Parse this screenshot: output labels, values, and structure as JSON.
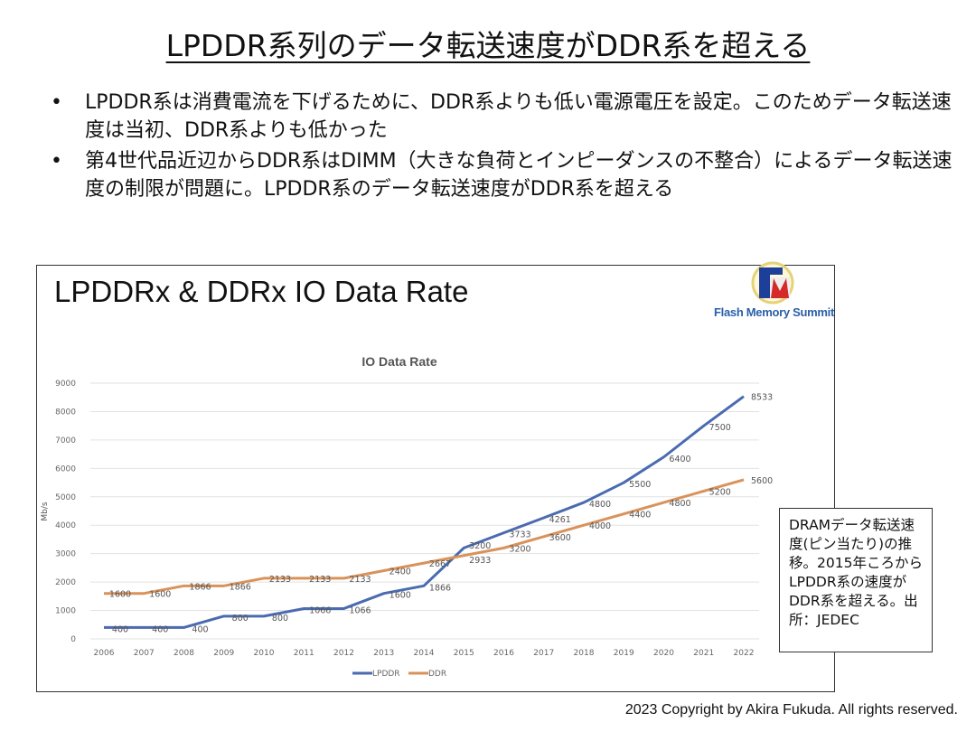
{
  "slide": {
    "title": "LPDDR系列のデータ転送速度がDDR系を超える",
    "bullets": [
      "LPDDR系は消費電流を下げるために、DDR系よりも低い電源電圧を設定。このためデータ転送速度は当初、DDR系よりも低かった",
      "第4世代品近辺からDDR系はDIMM（大きな負荷とインピーダンスの不整合）によるデータ転送速度の制限が問題に。LPDDR系のデータ転送速度がDDR系を超える"
    ],
    "chart_heading": "LPDDRx & DDRx IO Data Rate",
    "logo": {
      "letters": "FM",
      "caption": "Flash Memory Summit"
    },
    "note": "DRAMデータ転送速度(ピン当たり)の推移。2015年ころからLPDDR系の速度がDDR系を超える。出所：JEDEC",
    "copyright": "2023 Copyright by Akira Fukuda. All rights reserved."
  },
  "chart_data": {
    "type": "line",
    "title": "IO Data Rate",
    "xlabel": "",
    "ylabel": "Mb/s",
    "ylim": [
      0,
      9000
    ],
    "yticks": [
      0,
      1000,
      2000,
      3000,
      4000,
      5000,
      6000,
      7000,
      8000,
      9000
    ],
    "grid": true,
    "legend_position": "bottom",
    "x": [
      "2006",
      "2007",
      "2008",
      "2009",
      "2010",
      "2011",
      "2012",
      "2013",
      "2014",
      "2015",
      "2016",
      "2017",
      "2018",
      "2019",
      "2020",
      "2021",
      "2022"
    ],
    "series": [
      {
        "name": "LPDDR",
        "color": "#4a6bb0",
        "values": [
          400,
          400,
          400,
          800,
          800,
          1066,
          1066,
          1600,
          1866,
          3200,
          3733,
          4261,
          4800,
          5500,
          6400,
          7500,
          8533
        ]
      },
      {
        "name": "DDR",
        "color": "#d9925a",
        "values": [
          1600,
          1600,
          1866,
          1866,
          2133,
          2133,
          2133,
          2400,
          2667,
          2933,
          3200,
          3600,
          4000,
          4400,
          4800,
          5200,
          5600
        ]
      }
    ]
  }
}
